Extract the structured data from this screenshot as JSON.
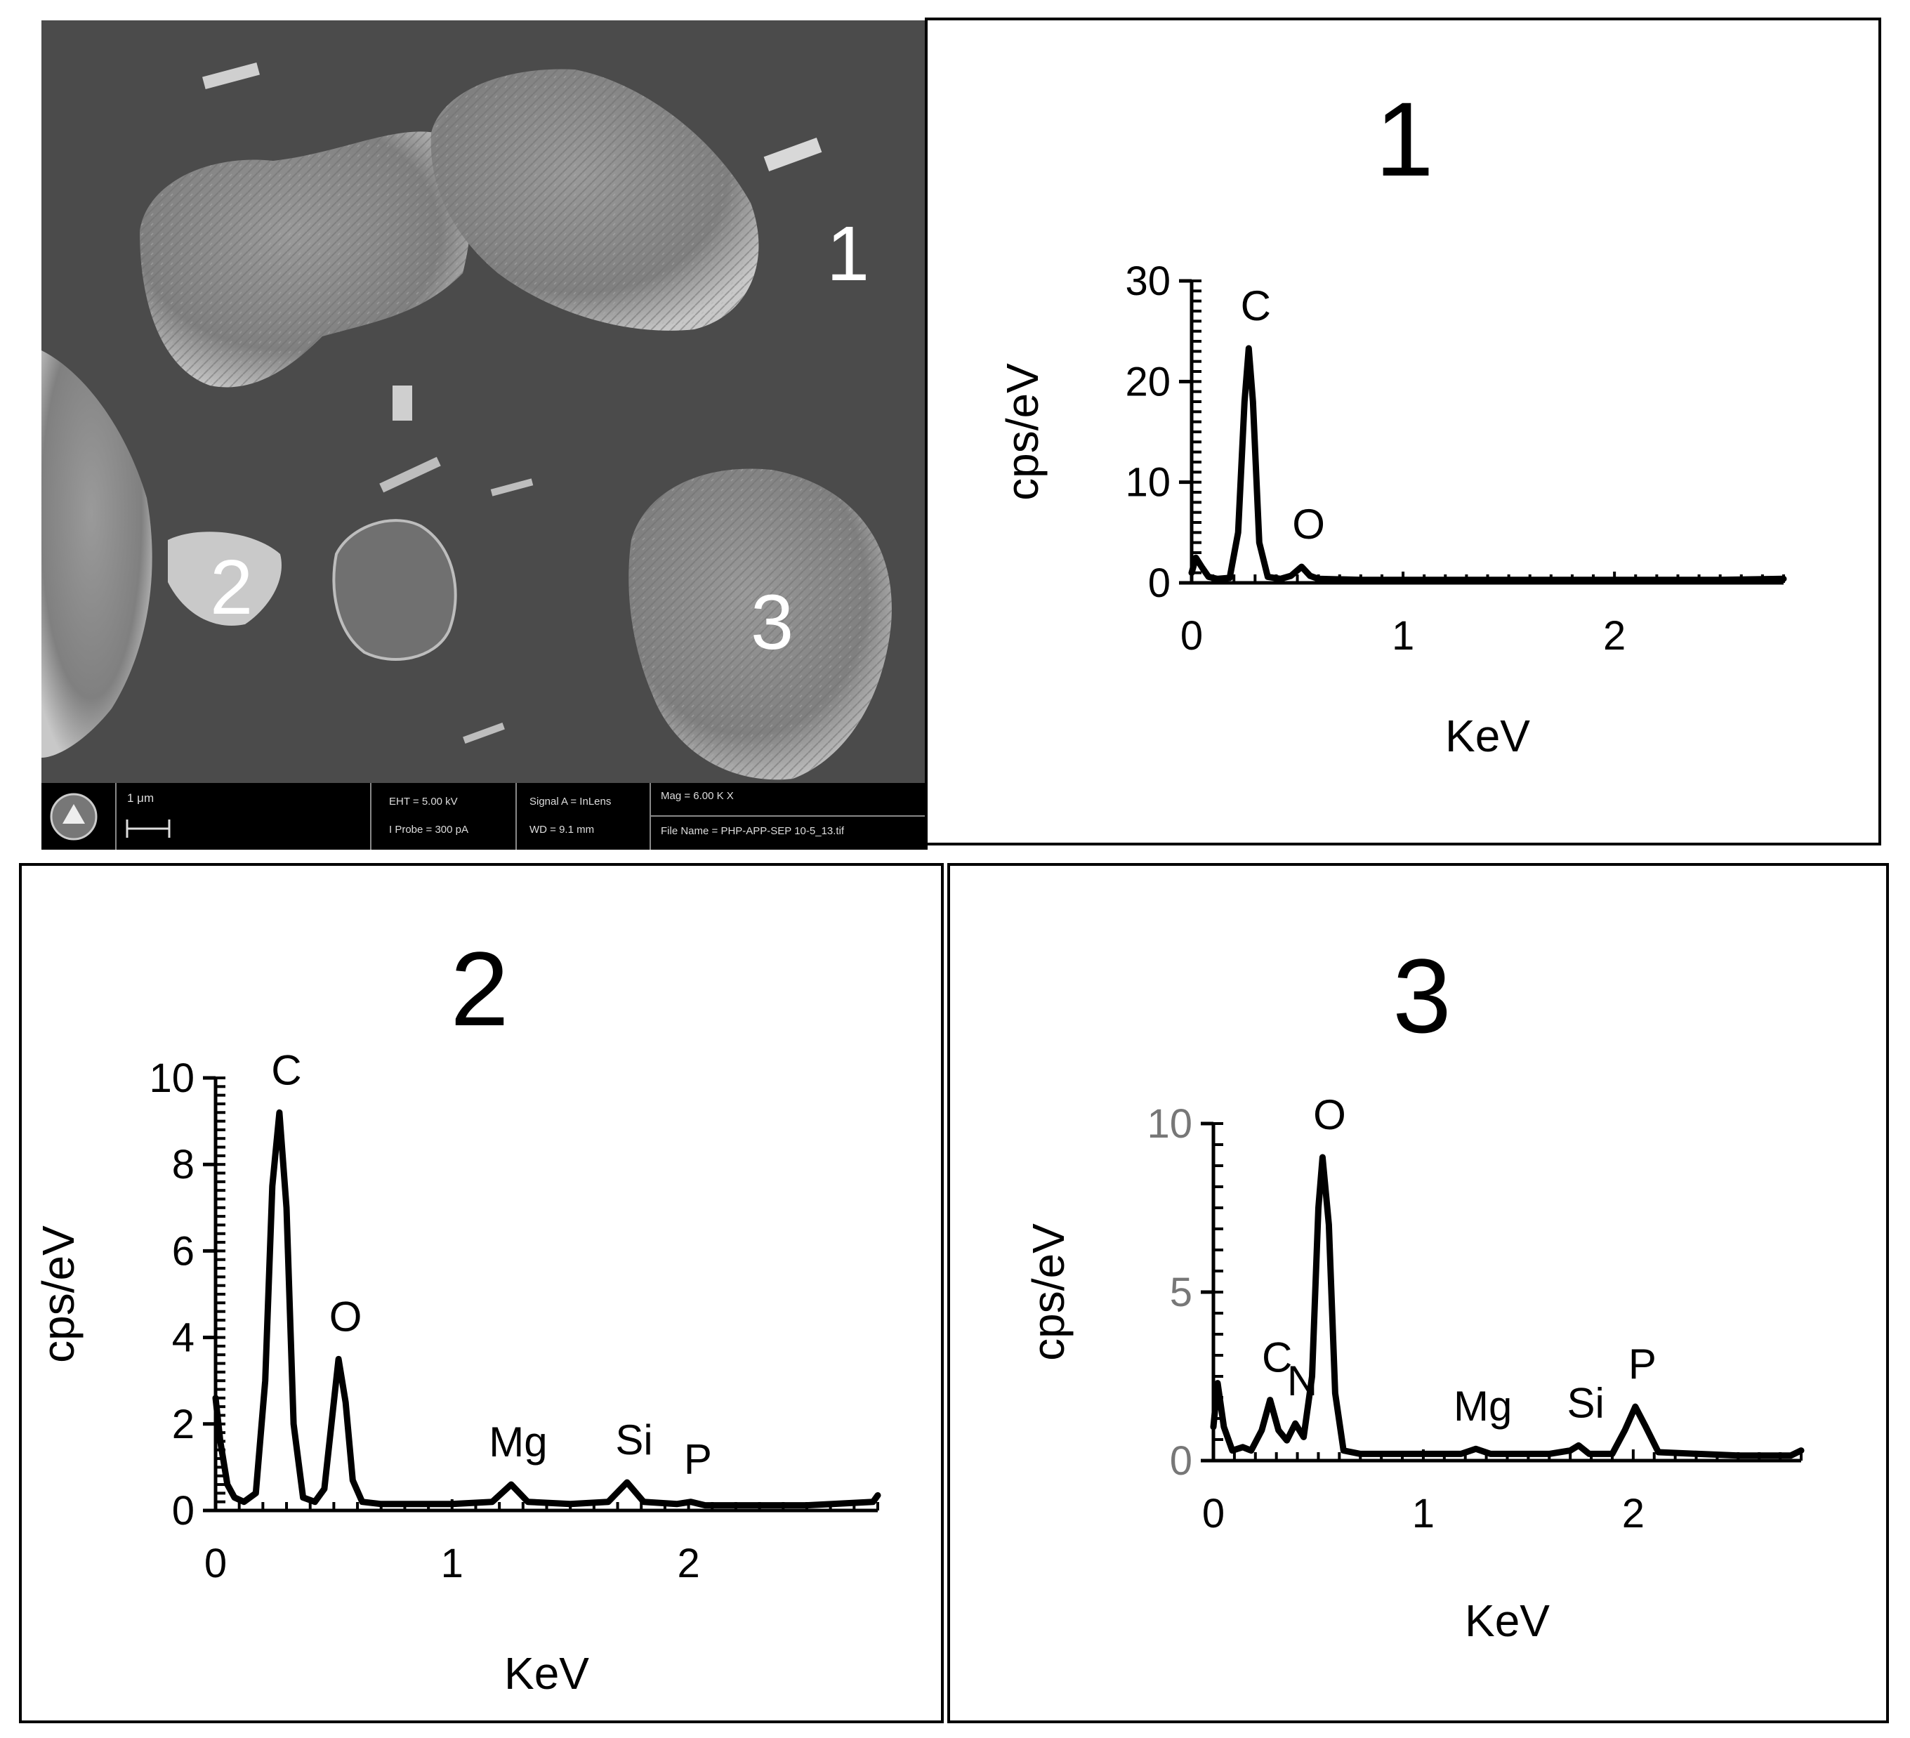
{
  "sem": {
    "region_labels": [
      "1",
      "2",
      "3"
    ],
    "scale_bar": "1 μm",
    "eht": "EHT =  5.00 kV",
    "iprobe": "I Probe =    300 pA",
    "signal": "Signal A = InLens",
    "wd": "WD =   9.1 mm",
    "mag": "Mag =    6.00 K X",
    "filename": "File Name = PHP-APP-SEP 10-5_13.tif",
    "logo_icon": "microscope-logo-icon"
  },
  "chart_data": [
    {
      "type": "line",
      "title": "1",
      "xlabel": "KeV",
      "ylabel": "cps/eV",
      "xlim": [
        0,
        2.8
      ],
      "ylim": [
        0,
        30
      ],
      "xticks": [
        0,
        1,
        2
      ],
      "yticks": [
        0,
        10,
        20,
        30
      ],
      "peaks": [
        {
          "label": "C",
          "x": 0.27,
          "y": 23.3
        },
        {
          "label": "O",
          "x": 0.52,
          "y": 1.6
        }
      ],
      "series": [
        {
          "x": [
            0,
            0.02,
            0.05,
            0.08,
            0.12,
            0.18,
            0.22,
            0.25,
            0.27,
            0.29,
            0.32,
            0.36,
            0.42,
            0.47,
            0.52,
            0.56,
            0.6,
            0.8,
            1.0,
            1.5,
            2.0,
            2.5,
            2.8
          ],
          "y": [
            1.0,
            2.5,
            1.5,
            0.6,
            0.4,
            0.5,
            5.0,
            18.0,
            23.3,
            18.0,
            4.0,
            0.6,
            0.4,
            0.7,
            1.6,
            0.7,
            0.4,
            0.3,
            0.3,
            0.3,
            0.3,
            0.3,
            0.4
          ]
        }
      ]
    },
    {
      "type": "line",
      "title": "2",
      "xlabel": "KeV",
      "ylabel": "cps/eV",
      "xlim": [
        0,
        2.8
      ],
      "ylim": [
        0,
        10
      ],
      "xticks": [
        0,
        1,
        2
      ],
      "yticks": [
        0,
        2,
        4,
        6,
        8,
        10
      ],
      "peaks": [
        {
          "label": "C",
          "x": 0.27,
          "y": 9.2
        },
        {
          "label": "O",
          "x": 0.52,
          "y": 3.5
        },
        {
          "label": "Mg",
          "x": 1.25,
          "y": 0.6
        },
        {
          "label": "Si",
          "x": 1.74,
          "y": 0.65
        },
        {
          "label": "P",
          "x": 2.01,
          "y": 0.2
        }
      ],
      "series": [
        {
          "x": [
            0,
            0.02,
            0.05,
            0.08,
            0.12,
            0.17,
            0.21,
            0.24,
            0.27,
            0.3,
            0.33,
            0.37,
            0.42,
            0.46,
            0.49,
            0.52,
            0.55,
            0.58,
            0.62,
            0.7,
            1.0,
            1.17,
            1.25,
            1.32,
            1.5,
            1.66,
            1.74,
            1.81,
            1.95,
            2.01,
            2.07,
            2.5,
            2.78,
            2.8
          ],
          "y": [
            2.6,
            1.6,
            0.6,
            0.3,
            0.2,
            0.4,
            3.0,
            7.5,
            9.2,
            7.0,
            2.0,
            0.3,
            0.2,
            0.5,
            2.0,
            3.5,
            2.5,
            0.7,
            0.2,
            0.15,
            0.15,
            0.2,
            0.6,
            0.2,
            0.15,
            0.2,
            0.65,
            0.2,
            0.15,
            0.2,
            0.12,
            0.12,
            0.2,
            0.35
          ]
        }
      ]
    },
    {
      "type": "line",
      "title": "3",
      "xlabel": "KeV",
      "ylabel": "cps/eV",
      "xlim": [
        0,
        2.8
      ],
      "ylim": [
        0,
        10
      ],
      "xticks": [
        0,
        1,
        2
      ],
      "yticks": [
        0,
        5,
        10
      ],
      "peaks": [
        {
          "label": "C",
          "x": 0.27,
          "y": 1.8
        },
        {
          "label": "N",
          "x": 0.39,
          "y": 1.1
        },
        {
          "label": "O",
          "x": 0.52,
          "y": 9.0
        },
        {
          "label": "Mg",
          "x": 1.25,
          "y": 0.35
        },
        {
          "label": "Si",
          "x": 1.74,
          "y": 0.45
        },
        {
          "label": "P",
          "x": 2.01,
          "y": 1.6
        }
      ],
      "series": [
        {
          "x": [
            0,
            0.02,
            0.05,
            0.09,
            0.14,
            0.18,
            0.23,
            0.27,
            0.31,
            0.35,
            0.39,
            0.43,
            0.47,
            0.5,
            0.52,
            0.55,
            0.58,
            0.62,
            0.7,
            1.0,
            1.18,
            1.25,
            1.32,
            1.6,
            1.7,
            1.74,
            1.79,
            1.9,
            1.96,
            2.01,
            2.06,
            2.12,
            2.5,
            2.75,
            2.8
          ],
          "y": [
            1.0,
            2.3,
            1.0,
            0.3,
            0.4,
            0.3,
            0.9,
            1.8,
            0.9,
            0.6,
            1.1,
            0.7,
            2.5,
            7.5,
            9.0,
            7.0,
            2.0,
            0.3,
            0.2,
            0.2,
            0.2,
            0.35,
            0.2,
            0.2,
            0.3,
            0.45,
            0.2,
            0.2,
            0.9,
            1.6,
            1.0,
            0.25,
            0.15,
            0.15,
            0.3
          ]
        }
      ]
    }
  ]
}
